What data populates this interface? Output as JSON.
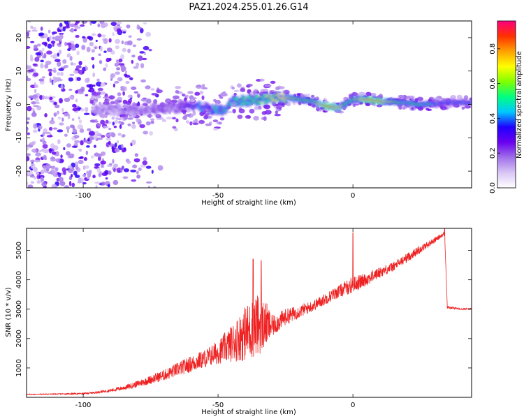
{
  "title": "PAZ1.2024.255.01.26.G14",
  "chart_data": [
    {
      "type": "heatmap",
      "xlabel": "Height of straight line (km)",
      "ylabel": "Frequency (Hz)",
      "xlim": [
        -121,
        44
      ],
      "ylim": [
        -25,
        25
      ],
      "xticks": [
        -100,
        -50,
        0
      ],
      "yticks": [
        -20,
        -10,
        0,
        10,
        20
      ],
      "x_tick_labels": [
        "-100",
        "-50",
        "0"
      ],
      "y_tick_labels": [
        "-20",
        "-10",
        "0",
        "10",
        "20"
      ],
      "colorbar": {
        "label": "Normalized spectral amplitude",
        "range": [
          0,
          0.96
        ],
        "ticks": [
          0.0,
          0.2,
          0.4,
          0.6,
          0.8
        ],
        "tick_labels": [
          "0.0",
          "0.2",
          "0.4",
          "0.6",
          "0.8"
        ],
        "colors": [
          "#ffffff",
          "#d9c6f5",
          "#a070ea",
          "#6a00f0",
          "#2000ff",
          "#00c8ff",
          "#00ff80",
          "#80ff00",
          "#ffff00",
          "#ffa000",
          "#ff3000",
          "#ff0080"
        ]
      },
      "signal_track": {
        "x": [
          -95,
          -85,
          -75,
          -65,
          -60,
          -55,
          -50,
          -47,
          -45,
          -40,
          -35,
          -30,
          -25,
          -20,
          -15,
          -10,
          -5,
          -2,
          0,
          5,
          10,
          15,
          20,
          25,
          30,
          35,
          40,
          44
        ],
        "frequency": [
          -1.5,
          -1.5,
          -1.3,
          -1.0,
          0.0,
          -1.0,
          -2.0,
          -1.5,
          1.0,
          1.0,
          1.5,
          1.8,
          2.0,
          1.5,
          1.0,
          -0.5,
          -1.0,
          0.5,
          1.5,
          1.5,
          1.0,
          0.8,
          0.5,
          0.0,
          0.2,
          0.5,
          0.5,
          0.5
        ],
        "amplitude": [
          0.05,
          0.08,
          0.12,
          0.15,
          0.3,
          0.4,
          0.45,
          0.5,
          0.45,
          0.5,
          0.55,
          0.6,
          0.7,
          0.6,
          0.55,
          0.9,
          0.8,
          0.5,
          0.6,
          0.9,
          0.85,
          0.6,
          0.45,
          0.55,
          0.4,
          0.35,
          0.4,
          0.35
        ]
      },
      "scatter_region_below": -95,
      "scatter_frequency_extent": [
        -25,
        25
      ]
    },
    {
      "type": "line",
      "color": "#ee2222",
      "xlabel": "Height of straight line (km)",
      "ylabel": "SNR (10 * v/v)",
      "xlim": [
        -121,
        44
      ],
      "ylim": [
        0,
        5750
      ],
      "xticks": [
        -100,
        -50,
        0
      ],
      "yticks": [
        1000,
        2000,
        3000,
        4000,
        5000
      ],
      "x_tick_labels": [
        "-100",
        "-50",
        "0"
      ],
      "y_tick_labels": [
        "1000",
        "2000",
        "3000",
        "4000",
        "5000"
      ],
      "x": [
        -121,
        -110,
        -100,
        -95,
        -90,
        -85,
        -80,
        -75,
        -70,
        -65,
        -60,
        -55,
        -50,
        -45,
        -40,
        -35,
        -32,
        -30,
        -25,
        -20,
        -15,
        -10,
        -5,
        0,
        5,
        10,
        15,
        20,
        25,
        30,
        34,
        35,
        40,
        44
      ],
      "y": [
        100,
        110,
        120,
        160,
        220,
        300,
        420,
        560,
        700,
        880,
        1050,
        1220,
        1420,
        1650,
        1900,
        2150,
        2250,
        2300,
        2650,
        2850,
        3050,
        3300,
        3550,
        3750,
        3950,
        4200,
        4400,
        4700,
        5000,
        5300,
        5550,
        3050,
        3000,
        3000
      ],
      "noise": [
        20,
        20,
        40,
        60,
        80,
        120,
        180,
        240,
        300,
        380,
        450,
        500,
        650,
        1000,
        1500,
        1700,
        1200,
        600,
        450,
        350,
        300,
        320,
        350,
        450,
        350,
        300,
        250,
        250,
        220,
        150,
        120,
        60,
        50,
        50
      ],
      "peaks": [
        {
          "x": -37,
          "y": 4700
        },
        {
          "x": -34,
          "y": 4650
        },
        {
          "x": 0,
          "y": 5600
        },
        {
          "x": 34,
          "y": 5750
        }
      ]
    }
  ]
}
